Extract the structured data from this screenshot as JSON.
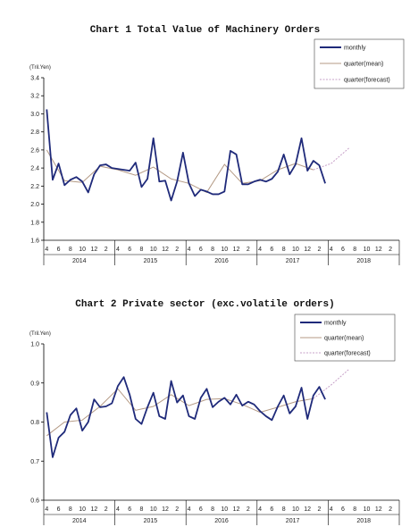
{
  "chart_data": [
    {
      "type": "line",
      "title": "Chart 1 Total Value of Machinery Orders",
      "unit": "(Tril.Yen)",
      "ylim": [
        1.6,
        3.4
      ],
      "yticks": [
        "1.6",
        "1.8",
        "2.0",
        "2.2",
        "2.4",
        "2.6",
        "2.8",
        "3.0",
        "3.2",
        "3.4"
      ],
      "month_labels": [
        "4",
        "6",
        "8",
        "10",
        "12",
        "2",
        "4",
        "6",
        "8",
        "10",
        "12",
        "2",
        "4",
        "6",
        "8",
        "10",
        "12",
        "2",
        "4",
        "6",
        "8",
        "10",
        "12",
        "2",
        "4",
        "6",
        "8",
        "10",
        "12",
        "2"
      ],
      "year_labels": [
        "2014",
        "2015",
        "2016",
        "2017",
        "2018"
      ],
      "legend": {
        "monthly": "monthly",
        "mean": "quarter(mean)",
        "forecast": "quarter(forecast)"
      },
      "colors": {
        "monthly": "#1f2a7a",
        "mean": "#b49a85",
        "forecast": "#c7a0c8",
        "axis": "#000000"
      },
      "series": [
        {
          "name": "monthly",
          "values": [
            3.05,
            2.27,
            2.45,
            2.21,
            2.27,
            2.3,
            2.25,
            2.13,
            2.33,
            2.43,
            2.44,
            2.4,
            2.39,
            2.38,
            2.37,
            2.46,
            2.19,
            2.28,
            2.73,
            2.25,
            2.26,
            2.04,
            2.25,
            2.57,
            2.23,
            2.09,
            2.16,
            2.14,
            2.11,
            2.11,
            2.14,
            2.59,
            2.55,
            2.22,
            2.22,
            2.25,
            2.27,
            2.25,
            2.28,
            2.36,
            2.55,
            2.33,
            2.44,
            2.73,
            2.37,
            2.48,
            2.43,
            2.23
          ]
        },
        {
          "name": "quarter(mean)",
          "points": [
            [
              1,
              2.6
            ],
            [
              4,
              2.26
            ],
            [
              7,
              2.24
            ],
            [
              10,
              2.42
            ],
            [
              13,
              2.38
            ],
            [
              16,
              2.32
            ],
            [
              19,
              2.41
            ],
            [
              22,
              2.28
            ],
            [
              25,
              2.23
            ],
            [
              28,
              2.13
            ],
            [
              31,
              2.44
            ],
            [
              34,
              2.23
            ],
            [
              37,
              2.26
            ],
            [
              40,
              2.38
            ],
            [
              43,
              2.45
            ],
            [
              46,
              2.38
            ]
          ]
        },
        {
          "name": "quarter(forecast)",
          "points": [
            [
              46,
              2.38
            ],
            [
              49,
              2.45
            ],
            [
              52,
              2.62
            ]
          ]
        }
      ]
    },
    {
      "type": "line",
      "title": "Chart 2 Private sector (exc.volatile orders)",
      "unit": "(Tril.Yen)",
      "ylim": [
        0.6,
        1.0
      ],
      "yticks": [
        "0.6",
        "0.7",
        "0.8",
        "0.9",
        "1.0"
      ],
      "month_labels": [
        "4",
        "6",
        "8",
        "10",
        "12",
        "2",
        "4",
        "6",
        "8",
        "10",
        "12",
        "2",
        "4",
        "6",
        "8",
        "10",
        "12",
        "2",
        "4",
        "6",
        "8",
        "10",
        "12",
        "2",
        "4",
        "6",
        "8",
        "10",
        "12",
        "2"
      ],
      "year_labels": [
        "2014",
        "2015",
        "2016",
        "2017",
        "2018"
      ],
      "legend": {
        "monthly": "monthly",
        "mean": "quarter(mean)",
        "forecast": "quarter(forecast)"
      },
      "colors": {
        "monthly": "#1f2a7a",
        "mean": "#b49a85",
        "forecast": "#c7a0c8",
        "axis": "#000000"
      },
      "series": [
        {
          "name": "monthly",
          "values": [
            0.825,
            0.71,
            0.76,
            0.775,
            0.818,
            0.835,
            0.778,
            0.8,
            0.858,
            0.838,
            0.84,
            0.848,
            0.892,
            0.915,
            0.87,
            0.808,
            0.795,
            0.838,
            0.875,
            0.815,
            0.808,
            0.905,
            0.85,
            0.868,
            0.815,
            0.808,
            0.862,
            0.885,
            0.838,
            0.852,
            0.862,
            0.845,
            0.87,
            0.842,
            0.852,
            0.845,
            0.828,
            0.815,
            0.805,
            0.84,
            0.868,
            0.822,
            0.84,
            0.888,
            0.808,
            0.868,
            0.89,
            0.858
          ]
        },
        {
          "name": "quarter(mean)",
          "points": [
            [
              1,
              0.765
            ],
            [
              4,
              0.8
            ],
            [
              7,
              0.805
            ],
            [
              10,
              0.84
            ],
            [
              13,
              0.885
            ],
            [
              16,
              0.83
            ],
            [
              19,
              0.84
            ],
            [
              22,
              0.87
            ],
            [
              25,
              0.842
            ],
            [
              28,
              0.858
            ],
            [
              31,
              0.86
            ],
            [
              34,
              0.845
            ],
            [
              37,
              0.825
            ],
            [
              40,
              0.838
            ],
            [
              43,
              0.852
            ],
            [
              46,
              0.86
            ]
          ]
        },
        {
          "name": "quarter(forecast)",
          "points": [
            [
              46,
              0.86
            ],
            [
              49,
              0.895
            ],
            [
              52,
              0.935
            ]
          ]
        }
      ]
    }
  ]
}
